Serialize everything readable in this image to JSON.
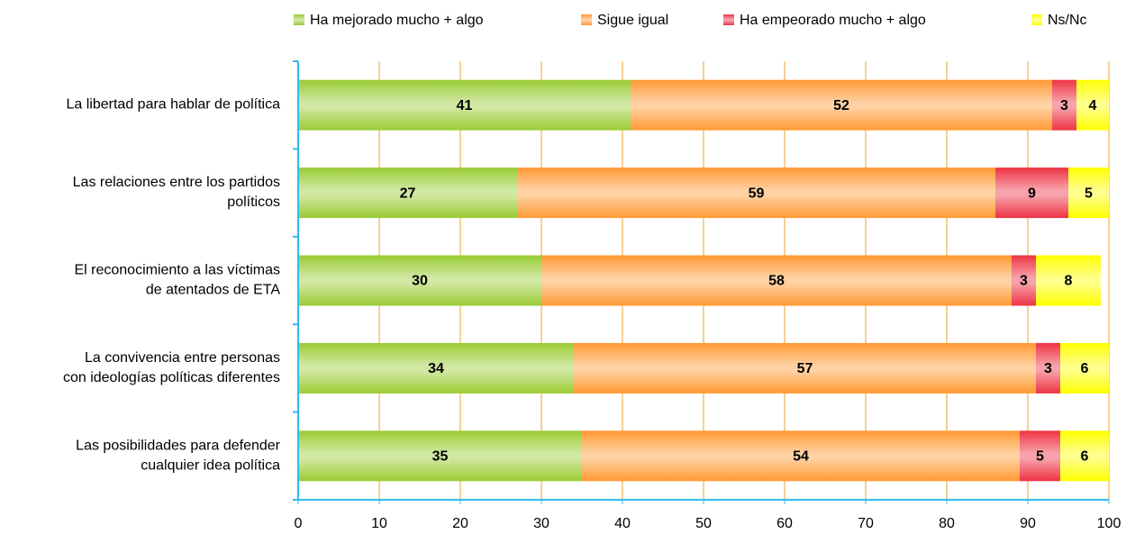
{
  "chart_data": {
    "type": "stacked_barh",
    "categories": [
      "La libertad para hablar de política",
      "Las relaciones entre los partidos\npolíticos",
      "El reconocimiento a las víctimas\nde atentados de ETA",
      "La convivencia entre personas\ncon ideologías políticas diferentes",
      "Las posibilidades para defender\ncualquier idea política"
    ],
    "series": [
      {
        "name": "Ha mejorado mucho + algo",
        "color": "#99cc33",
        "values": [
          41,
          27,
          30,
          34,
          35
        ]
      },
      {
        "name": "Sigue igual",
        "color": "#ff9933",
        "values": [
          52,
          59,
          58,
          57,
          54
        ]
      },
      {
        "name": "Ha empeorado mucho + algo",
        "color": "#ee3344",
        "values": [
          3,
          9,
          3,
          3,
          5
        ]
      },
      {
        "name": "Ns/Nc",
        "color": "#ffff00",
        "values": [
          4,
          5,
          8,
          6,
          6
        ]
      }
    ],
    "xlim": [
      0,
      100
    ],
    "xticks": [
      0,
      10,
      20,
      30,
      40,
      50,
      60,
      70,
      80,
      90,
      100
    ],
    "grid": true,
    "legend": "top"
  }
}
